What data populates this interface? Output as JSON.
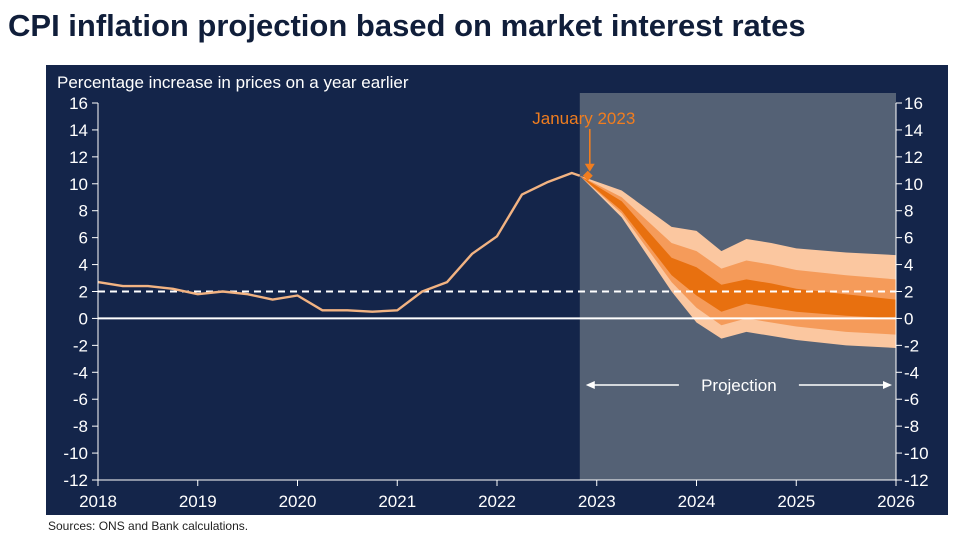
{
  "title": "CPI inflation projection based on market interest rates",
  "sources": "Sources: ONS and Bank calculations.",
  "colors": {
    "panel": "#14254a",
    "projection_shade": "#546175",
    "history_line": "#f2b382",
    "band_outer": "#fbc7a0",
    "band_middle": "#f59b5a",
    "band_inner": "#e8700f",
    "annotation": "#f07d1f",
    "target_line": "#ffffff",
    "zero_line": "#ffffff",
    "text": "#ffffff"
  },
  "chart_data": {
    "type": "line",
    "title": "",
    "ylabel": "Percentage increase in prices on a year earlier",
    "xlabel": "",
    "ylim": [
      -12,
      16
    ],
    "xlim": [
      2018,
      2026
    ],
    "y_ticks": [
      16,
      14,
      12,
      10,
      8,
      6,
      4,
      2,
      0,
      -2,
      -4,
      -6,
      -8,
      -10,
      -12
    ],
    "x_ticks": [
      2018,
      2019,
      2020,
      2021,
      2022,
      2023,
      2024,
      2025,
      2026
    ],
    "grid": false,
    "inflation_target": 2,
    "history": {
      "x": [
        2018.0,
        2018.25,
        2018.5,
        2018.75,
        2019.0,
        2019.25,
        2019.5,
        2019.75,
        2020.0,
        2020.25,
        2020.5,
        2020.75,
        2021.0,
        2021.25,
        2021.5,
        2021.75,
        2022.0,
        2022.25,
        2022.5,
        2022.75,
        2022.83
      ],
      "y": [
        2.7,
        2.4,
        2.4,
        2.2,
        1.8,
        2.0,
        1.8,
        1.4,
        1.7,
        0.6,
        0.6,
        0.5,
        0.6,
        2.0,
        2.7,
        4.8,
        6.1,
        9.2,
        10.1,
        10.8,
        10.6
      ]
    },
    "projection": {
      "start": 2022.83,
      "end": 2026.0,
      "label": "Projection",
      "fan_x": [
        2022.83,
        2023.25,
        2023.75,
        2024.0,
        2024.25,
        2024.5,
        2024.75,
        2025.0,
        2025.5,
        2026.0
      ],
      "bands": [
        {
          "level": "outer",
          "upper": [
            10.6,
            9.5,
            6.8,
            6.5,
            5.0,
            5.9,
            5.6,
            5.2,
            4.9,
            4.7
          ],
          "lower": [
            10.6,
            7.5,
            2.0,
            -0.3,
            -1.5,
            -1.0,
            -1.3,
            -1.6,
            -2.0,
            -2.2
          ]
        },
        {
          "level": "middle",
          "upper": [
            10.6,
            9.0,
            5.6,
            5.0,
            3.7,
            4.3,
            4.0,
            3.6,
            3.2,
            2.9
          ],
          "lower": [
            10.6,
            7.8,
            2.7,
            0.8,
            -0.5,
            0.0,
            -0.3,
            -0.6,
            -1.0,
            -1.2
          ]
        },
        {
          "level": "inner",
          "upper": [
            10.6,
            8.7,
            4.5,
            3.8,
            2.5,
            2.9,
            2.6,
            2.2,
            1.8,
            1.4
          ],
          "lower": [
            10.6,
            8.0,
            3.2,
            1.7,
            0.5,
            1.1,
            0.8,
            0.5,
            0.2,
            0.0
          ]
        }
      ]
    },
    "annotations": [
      {
        "text": "January 2023",
        "x": 2022.83,
        "y": 10.6
      }
    ]
  }
}
